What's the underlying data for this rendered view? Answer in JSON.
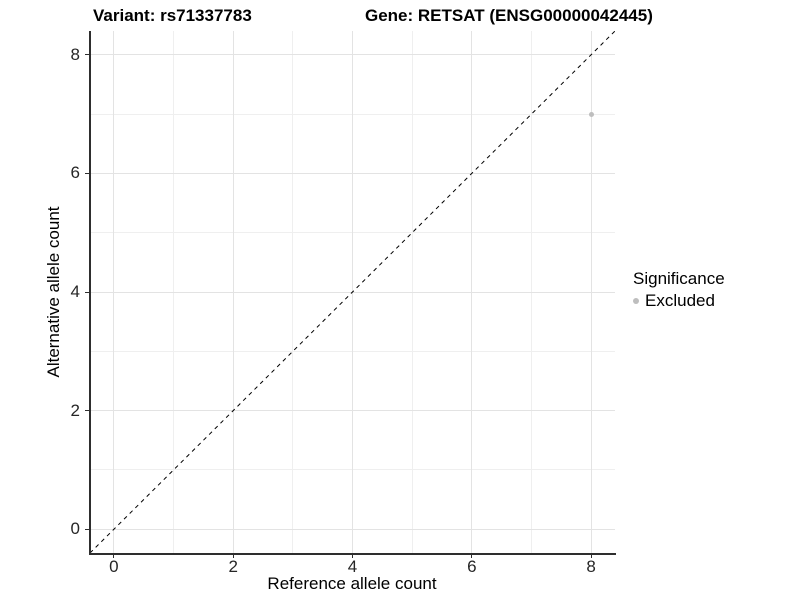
{
  "figure": {
    "title_left": "Variant: rs71337783",
    "title_right": "Gene: RETSAT (ENSG00000042445)"
  },
  "axes": {
    "x_label": "Reference allele count",
    "y_label": "Alternative allele count",
    "x_tick_labels": [
      "0",
      "2",
      "4",
      "6",
      "8"
    ],
    "y_tick_labels": [
      "0",
      "2",
      "4",
      "6",
      "8"
    ]
  },
  "legend": {
    "title": "Significance",
    "items": [
      {
        "label": "Excluded",
        "color": "#bebebe"
      }
    ]
  },
  "chart_data": {
    "type": "scatter",
    "title": "Variant: rs71337783   Gene: RETSAT (ENSG00000042445)",
    "xlabel": "Reference allele count",
    "ylabel": "Alternative allele count",
    "xlim": [
      -0.4,
      8.4
    ],
    "ylim": [
      -0.4,
      8.4
    ],
    "x_ticks": [
      0,
      2,
      4,
      6,
      8
    ],
    "y_ticks": [
      0,
      2,
      4,
      6,
      8
    ],
    "grid_major": [
      0,
      2,
      4,
      6,
      8
    ],
    "grid_minor": [
      1,
      3,
      5,
      7
    ],
    "grid_on": true,
    "legend_position": "right",
    "series": [
      {
        "name": "Excluded",
        "color": "#bebebe",
        "points": [
          {
            "x": 8,
            "y": 7
          }
        ]
      }
    ],
    "reference_line": {
      "type": "identity",
      "style": "dashed",
      "dash": [
        4,
        4
      ],
      "color": "#000000",
      "from": [
        -0.4,
        -0.4
      ],
      "to": [
        8.4,
        8.4
      ]
    },
    "colors": {
      "background": "#ffffff",
      "grid_major": "#e3e3e3",
      "grid_minor": "#efefef",
      "axis_line": "#2e2e2e",
      "tick_text": "#262626",
      "point": "#bebebe"
    }
  }
}
